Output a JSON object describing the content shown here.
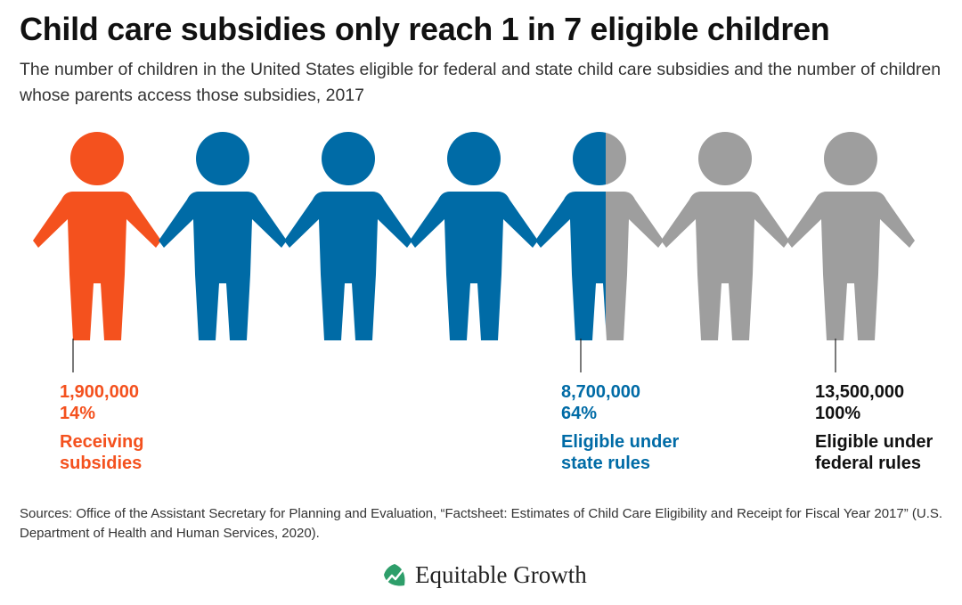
{
  "title": "Child care subsidies only reach 1 in 7 eligible children",
  "subtitle": "The number of children in the United States eligible for federal and state child care subsidies and the number of children whose parents access those subsidies, 2017",
  "sources": "Sources: Office of the Assistant Secretary for Planning and Evaluation, “Factsheet: Estimates of Child Care Eligibility and Receipt for Fiscal Year 2017” (U.S. Department of Health and Human Services, 2020).",
  "logo": {
    "text": "Equitable Growth",
    "icon": "leaf-chart-icon"
  },
  "colors": {
    "orange": "#f4511e",
    "blue": "#006ba6",
    "gray": "#9e9e9e"
  },
  "chart_data": {
    "type": "pictograph",
    "total_figures": 7,
    "figure_fill": [
      {
        "fill": "orange"
      },
      {
        "fill": "blue"
      },
      {
        "fill": "blue"
      },
      {
        "fill": "blue"
      },
      {
        "fill": "blue",
        "split": 0.5,
        "right_fill": "gray"
      },
      {
        "fill": "gray"
      },
      {
        "fill": "gray"
      }
    ],
    "series": [
      {
        "name": "Receiving subsidies",
        "value": 1900000,
        "value_label": "1,900,000",
        "percent_label": "14%",
        "color": "orange"
      },
      {
        "name": "Eligible under state rules",
        "value": 8700000,
        "value_label": "8,700,000",
        "percent_label": "64%",
        "color": "blue"
      },
      {
        "name": "Eligible under federal rules",
        "value": 13500000,
        "value_label": "13,500,000",
        "percent_label": "100%",
        "color": "black"
      }
    ],
    "labels": [
      {
        "line1": "Receiving",
        "line2": "subsidies"
      },
      {
        "line1": "Eligible under",
        "line2": "state rules"
      },
      {
        "line1": "Eligible under",
        "line2": "federal rules"
      }
    ]
  }
}
